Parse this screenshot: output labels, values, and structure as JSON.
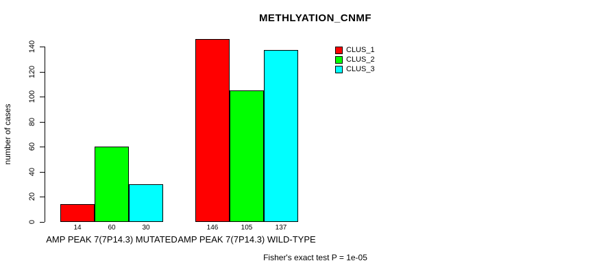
{
  "chart_data": {
    "type": "bar",
    "title": "METHLYATION_CNMF",
    "ylabel": "number of cases",
    "xlabel": "",
    "ylim": [
      0,
      140
    ],
    "yticks": [
      0,
      20,
      40,
      60,
      80,
      100,
      120,
      140
    ],
    "grid": false,
    "legend_position": "top-right",
    "categories": [
      "AMP PEAK 7(7P14.3) MUTATED",
      "AMP PEAK 7(7P14.3) WILD-TYPE"
    ],
    "series": [
      {
        "name": "CLUS_1",
        "color": "#FF0000",
        "values": [
          14,
          146
        ]
      },
      {
        "name": "CLUS_2",
        "color": "#00FF00",
        "values": [
          60,
          105
        ]
      },
      {
        "name": "CLUS_3",
        "color": "#00FFFF",
        "values": [
          30,
          137
        ]
      }
    ],
    "bar_value_labels": [
      [
        "14",
        "60",
        "30"
      ],
      [
        "146",
        "105",
        "137"
      ]
    ],
    "annotation": "Fisher's exact test P = 1e-05"
  }
}
